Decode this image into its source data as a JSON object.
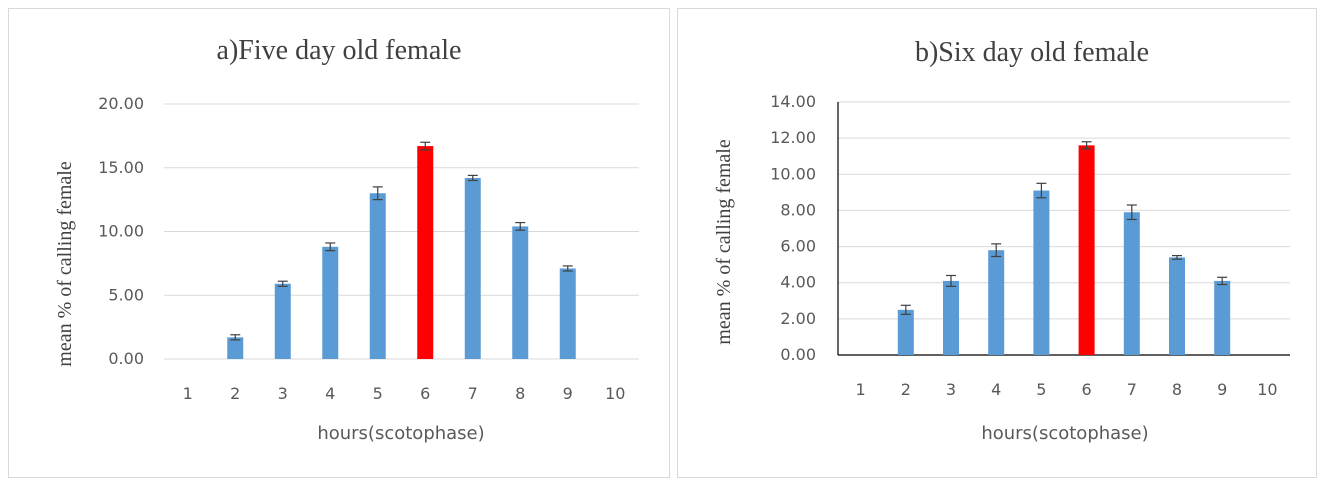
{
  "chart_data": [
    {
      "type": "bar",
      "title": "a)Five day old female",
      "xlabel": "hours(scotophase)",
      "ylabel": "mean % of calling female",
      "categories": [
        "1",
        "2",
        "3",
        "4",
        "5",
        "6",
        "7",
        "8",
        "9",
        "10"
      ],
      "values": [
        0,
        1.7,
        5.9,
        8.8,
        13.0,
        16.7,
        14.2,
        10.4,
        7.1,
        0
      ],
      "errors": [
        0,
        0.2,
        0.2,
        0.3,
        0.5,
        0.3,
        0.2,
        0.3,
        0.2,
        0
      ],
      "ylim": [
        0,
        20
      ],
      "yticks": [
        "0.00",
        "5.00",
        "10.00",
        "15.00",
        "20.00"
      ],
      "grid": true,
      "axes": "gridlines-only",
      "bar_color": "#5b9bd5",
      "highlight_color": "#ff0000",
      "highlight_index": 5
    },
    {
      "type": "bar",
      "title": "b)Six day old female",
      "xlabel": "hours(scotophase)",
      "ylabel": "mean % of calling female",
      "categories": [
        "1",
        "2",
        "3",
        "4",
        "5",
        "6",
        "7",
        "8",
        "9",
        "10"
      ],
      "values": [
        0,
        2.5,
        4.1,
        5.8,
        9.1,
        11.6,
        7.9,
        5.4,
        4.1,
        0
      ],
      "errors": [
        0,
        0.25,
        0.3,
        0.35,
        0.4,
        0.2,
        0.4,
        0.1,
        0.2,
        0
      ],
      "ylim": [
        0,
        14
      ],
      "yticks": [
        "0.00",
        "2.00",
        "4.00",
        "6.00",
        "8.00",
        "10.00",
        "12.00",
        "14.00"
      ],
      "grid": true,
      "axes": "black-axis-lines",
      "bar_color": "#5b9bd5",
      "highlight_color": "#ff0000",
      "highlight_index": 5
    }
  ]
}
